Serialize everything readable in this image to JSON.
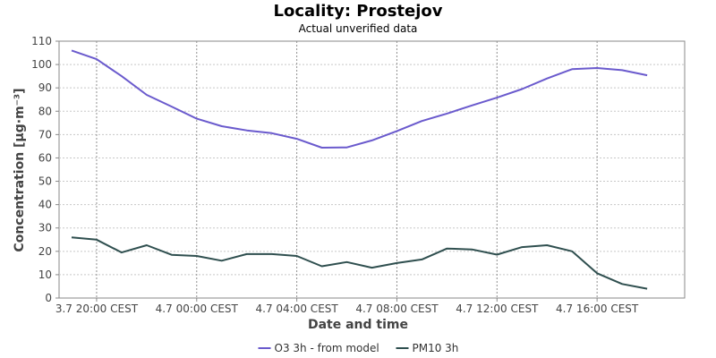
{
  "chart_data": {
    "type": "line",
    "title": "Locality: Prostejov",
    "subtitle": "Actual unverified data",
    "xlabel": "Date and time",
    "ylabel": "Concentration [µg·m⁻³]",
    "ylim": [
      0,
      110
    ],
    "yticks": [
      0,
      10,
      20,
      30,
      40,
      50,
      60,
      70,
      80,
      90,
      100,
      110
    ],
    "xlim": [
      "3.7 18:30",
      "4.7 19:30"
    ],
    "x": [
      "3.7 19:00",
      "3.7 20:00",
      "3.7 21:00",
      "3.7 22:00",
      "3.7 23:00",
      "4.7 00:00",
      "4.7 01:00",
      "4.7 02:00",
      "4.7 03:00",
      "4.7 04:00",
      "4.7 05:00",
      "4.7 06:00",
      "4.7 07:00",
      "4.7 08:00",
      "4.7 09:00",
      "4.7 10:00",
      "4.7 11:00",
      "4.7 12:00",
      "4.7 13:00",
      "4.7 14:00",
      "4.7 15:00",
      "4.7 16:00",
      "4.7 17:00",
      "4.7 18:00",
      "4.7 19:00"
    ],
    "xticks": [
      {
        "time": "3.7 20:00",
        "label": "3.7 20:00 CEST"
      },
      {
        "time": "4.7 00:00",
        "label": "4.7 00:00 CEST"
      },
      {
        "time": "4.7 04:00",
        "label": "4.7 04:00 CEST"
      },
      {
        "time": "4.7 08:00",
        "label": "4.7 08:00 CEST"
      },
      {
        "time": "4.7 12:00",
        "label": "4.7 12:00 CEST"
      },
      {
        "time": "4.7 16:00",
        "label": "4.7 16:00 CEST"
      }
    ],
    "grid": true,
    "legend_position": "bottom",
    "series": [
      {
        "name": "O3 3h - from model",
        "color": "#6a5acd",
        "values": [
          106,
          102.3,
          95,
          87,
          82,
          76.8,
          73.6,
          71.8,
          70.6,
          68.2,
          64.4,
          64.5,
          67.5,
          71.5,
          75.8,
          79,
          82.5,
          85.8,
          89.5,
          94,
          98,
          98.5,
          97.6,
          95.4,
          null
        ]
      },
      {
        "name": "PM10 3h",
        "color": "#2f4f4f",
        "values": [
          26,
          25,
          19.5,
          22.6,
          18.5,
          18,
          16,
          18.8,
          18.8,
          18,
          13.6,
          15.4,
          13,
          15,
          16.5,
          21.2,
          20.8,
          18.6,
          21.8,
          22.6,
          20,
          10.6,
          6,
          4,
          null
        ]
      }
    ]
  }
}
